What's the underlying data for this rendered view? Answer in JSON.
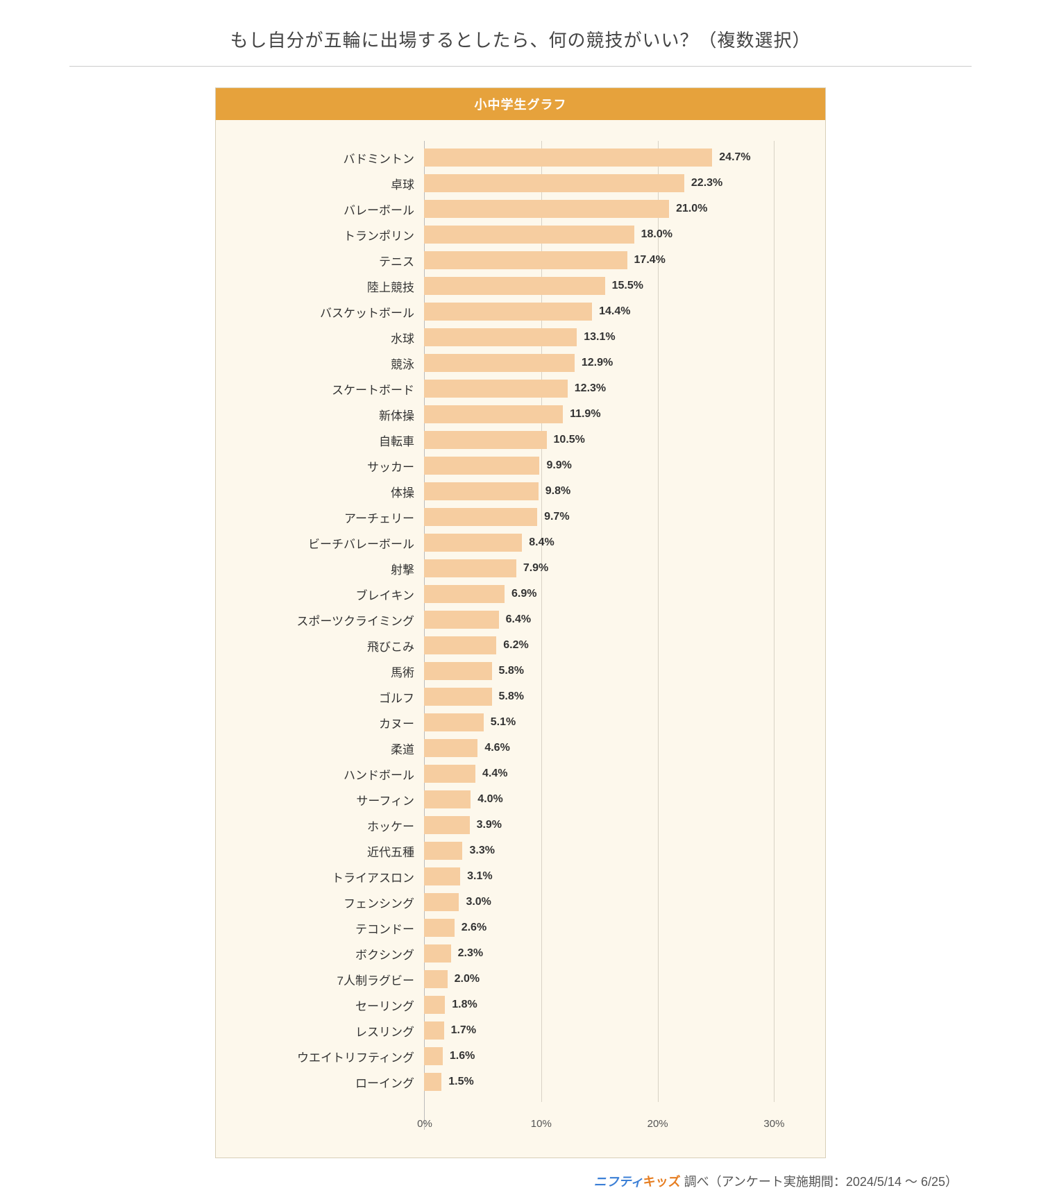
{
  "title": "もし自分が五輪に出場するとしたら、何の競技がいい？（複数選択）",
  "chart": {
    "type": "bar-horizontal",
    "header": "小中学生グラフ",
    "bar_color": "#f6cda0",
    "background": "#fdf8ec",
    "border_color": "#d8cfb8",
    "header_bg": "#e6a23c",
    "header_color": "#ffffff",
    "grid_color": "#d8d2c5",
    "label_fontsize": 17,
    "value_fontsize": 16,
    "xmax": 32,
    "xticks": [
      {
        "value": 0,
        "label": "0%"
      },
      {
        "value": 10,
        "label": "10%"
      },
      {
        "value": 20,
        "label": "20%"
      },
      {
        "value": 30,
        "label": "30%"
      }
    ],
    "items": [
      {
        "label": "バドミントン",
        "value": 24.7,
        "text": "24.7%"
      },
      {
        "label": "卓球",
        "value": 22.3,
        "text": "22.3%"
      },
      {
        "label": "バレーボール",
        "value": 21.0,
        "text": "21.0%"
      },
      {
        "label": "トランポリン",
        "value": 18.0,
        "text": "18.0%"
      },
      {
        "label": "テニス",
        "value": 17.4,
        "text": "17.4%"
      },
      {
        "label": "陸上競技",
        "value": 15.5,
        "text": "15.5%"
      },
      {
        "label": "バスケットボール",
        "value": 14.4,
        "text": "14.4%"
      },
      {
        "label": "水球",
        "value": 13.1,
        "text": "13.1%"
      },
      {
        "label": "競泳",
        "value": 12.9,
        "text": "12.9%"
      },
      {
        "label": "スケートボード",
        "value": 12.3,
        "text": "12.3%"
      },
      {
        "label": "新体操",
        "value": 11.9,
        "text": "11.9%"
      },
      {
        "label": "自転車",
        "value": 10.5,
        "text": "10.5%"
      },
      {
        "label": "サッカー",
        "value": 9.9,
        "text": "9.9%"
      },
      {
        "label": "体操",
        "value": 9.8,
        "text": "9.8%"
      },
      {
        "label": "アーチェリー",
        "value": 9.7,
        "text": "9.7%"
      },
      {
        "label": "ビーチバレーボール",
        "value": 8.4,
        "text": "8.4%"
      },
      {
        "label": "射撃",
        "value": 7.9,
        "text": "7.9%"
      },
      {
        "label": "ブレイキン",
        "value": 6.9,
        "text": "6.9%"
      },
      {
        "label": "スポーツクライミング",
        "value": 6.4,
        "text": "6.4%"
      },
      {
        "label": "飛びこみ",
        "value": 6.2,
        "text": "6.2%"
      },
      {
        "label": "馬術",
        "value": 5.8,
        "text": "5.8%"
      },
      {
        "label": "ゴルフ",
        "value": 5.8,
        "text": "5.8%"
      },
      {
        "label": "カヌー",
        "value": 5.1,
        "text": "5.1%"
      },
      {
        "label": "柔道",
        "value": 4.6,
        "text": "4.6%"
      },
      {
        "label": "ハンドボール",
        "value": 4.4,
        "text": "4.4%"
      },
      {
        "label": "サーフィン",
        "value": 4.0,
        "text": "4.0%"
      },
      {
        "label": "ホッケー",
        "value": 3.9,
        "text": "3.9%"
      },
      {
        "label": "近代五種",
        "value": 3.3,
        "text": "3.3%"
      },
      {
        "label": "トライアスロン",
        "value": 3.1,
        "text": "3.1%"
      },
      {
        "label": "フェンシング",
        "value": 3.0,
        "text": "3.0%"
      },
      {
        "label": "テコンドー",
        "value": 2.6,
        "text": "2.6%"
      },
      {
        "label": "ボクシング",
        "value": 2.3,
        "text": "2.3%"
      },
      {
        "label": "7人制ラグビー",
        "value": 2.0,
        "text": "2.0%"
      },
      {
        "label": "セーリング",
        "value": 1.8,
        "text": "1.8%"
      },
      {
        "label": "レスリング",
        "value": 1.7,
        "text": "1.7%"
      },
      {
        "label": "ウエイトリフティング",
        "value": 1.6,
        "text": "1.6%"
      },
      {
        "label": "ローイング",
        "value": 1.5,
        "text": "1.5%"
      }
    ]
  },
  "footer": {
    "brand1": "ニフティ",
    "brand2": "キッズ",
    "text": " 調べ（アンケート実施期間：2024/5/14 〜 6/25）"
  }
}
